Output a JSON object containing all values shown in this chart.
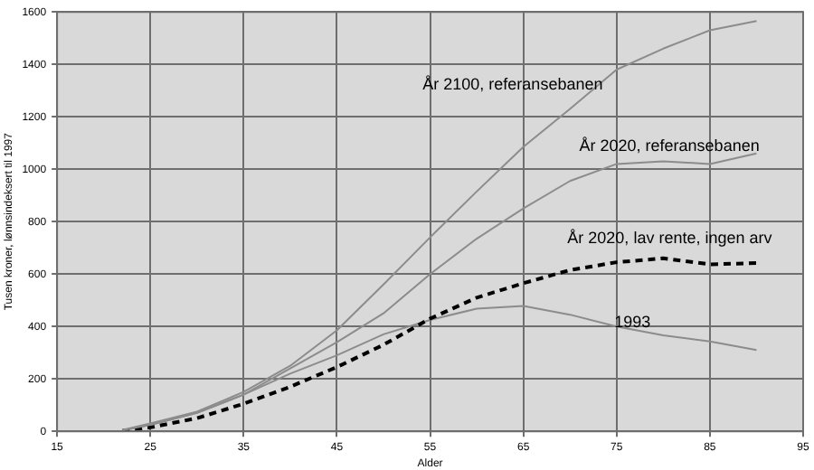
{
  "chart_data": {
    "type": "line",
    "xlabel": "Alder",
    "ylabel": "Tusen kroner, lønnsindeksert til 1997",
    "x": [
      22,
      25,
      30,
      35,
      40,
      45,
      50,
      55,
      60,
      65,
      70,
      75,
      80,
      85,
      90
    ],
    "series": [
      {
        "name": "År 2100, referansebanen",
        "color": "#8c8c8c",
        "values": [
          5,
          30,
          75,
          150,
          250,
          385,
          560,
          740,
          915,
          1085,
          1230,
          1380,
          1460,
          1530,
          1565
        ]
      },
      {
        "name": "År 2020, referansebanen",
        "color": "#8c8c8c",
        "values": [
          4,
          25,
          70,
          140,
          240,
          340,
          450,
          600,
          735,
          850,
          955,
          1020,
          1030,
          1020,
          1060
        ]
      },
      {
        "name": "År 2020, lav rente, ingen arv",
        "color": "#000000",
        "line_style": "dashed",
        "values": [
          2,
          15,
          50,
          105,
          170,
          245,
          330,
          430,
          510,
          565,
          615,
          645,
          660,
          637,
          642
        ]
      },
      {
        "name": "1993",
        "color": "#8c8c8c",
        "values": [
          3,
          25,
          70,
          140,
          220,
          290,
          370,
          425,
          468,
          478,
          445,
          400,
          366,
          343,
          310
        ]
      }
    ],
    "xlim": [
      15,
      95
    ],
    "xticks": [
      15,
      25,
      35,
      45,
      55,
      65,
      75,
      85,
      95
    ],
    "ylim": [
      0,
      1600
    ],
    "yticks": [
      0,
      200,
      400,
      600,
      800,
      1000,
      1200,
      1400,
      1600
    ],
    "grid": true,
    "legend": false,
    "marker": "none",
    "line_style": "solid"
  }
}
